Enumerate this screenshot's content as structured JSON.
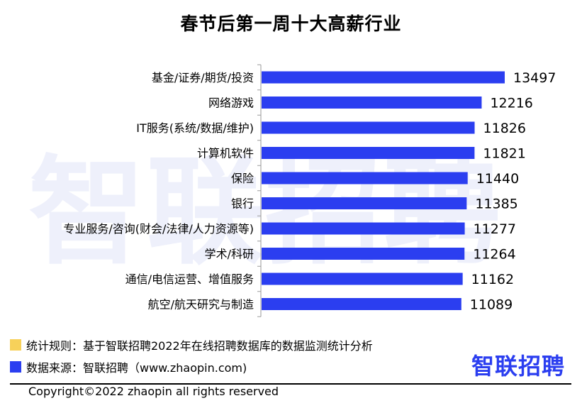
{
  "chart_data": {
    "type": "bar",
    "orientation": "horizontal",
    "title": "春节后第一周十大高薪行业",
    "categories": [
      "基金/证券/期货/投资",
      "网络游戏",
      "IT服务(系统/数据/维护)",
      "计算机软件",
      "保险",
      "银行",
      "专业服务/咨询(财会/法律/人力资源等)",
      "学术/科研",
      "通信/电信运营、增值服务",
      "航空/航天研究与制造"
    ],
    "values": [
      13497,
      12216,
      11826,
      11821,
      11440,
      11385,
      11277,
      11264,
      11162,
      11089
    ],
    "xlim": [
      0,
      13497
    ],
    "grid": false,
    "legend": "none",
    "bar_color": "#2b3ef0"
  },
  "notes": {
    "rule_label": "统计规则：基于智联招聘2022年在线招聘数据库的数据监测统计分析",
    "rule_color": "#f7d15a",
    "source_label": "数据来源：智联招聘（www.zhaopin.com)",
    "source_color": "#2b3ef0"
  },
  "brand": {
    "logo_text": "智联招聘",
    "logo_color": "#2b3ef0",
    "watermark_text": "智联招聘"
  },
  "footer": {
    "copyright": "Copyright©2022 zhaopin all rights reserved"
  }
}
